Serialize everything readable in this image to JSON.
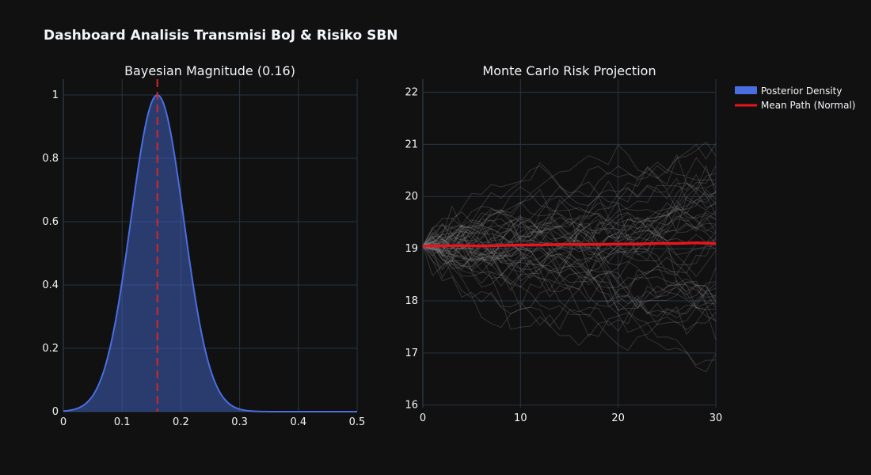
{
  "title": "Dashboard Analisis Transmisi BoJ & Risiko SBN",
  "colors": {
    "background": "#111111",
    "grid": "#283442",
    "density_line": "#4a6ee0",
    "density_fill": "rgba(74,110,224,0.45)",
    "mean_marker": "#d62728",
    "mc_paths": "rgba(160,160,160,0.25)",
    "mean_path": "#e8141e"
  },
  "legend": {
    "items": [
      {
        "label": "Posterior Density",
        "type": "area",
        "color": "#4a6ee0"
      },
      {
        "label": "Mean Path (Normal)",
        "type": "line",
        "color": "#e8141e"
      }
    ],
    "position": "top-right"
  },
  "chart_data": [
    {
      "type": "area",
      "title": "Bayesian Magnitude (0.16)",
      "xlabel": "",
      "ylabel": "",
      "xlim": [
        0,
        0.5
      ],
      "ylim": [
        0,
        1.05
      ],
      "xticks": [
        "0",
        "0.1",
        "0.2",
        "0.3",
        "0.4",
        "0.5"
      ],
      "yticks": [
        "0",
        "0.2",
        "0.4",
        "0.6",
        "0.8",
        "1"
      ],
      "grid": true,
      "distribution": {
        "shape": "normal",
        "mean": 0.16,
        "sd": 0.045,
        "normalized_peak": 1
      },
      "mean_line": {
        "x": 0.16,
        "style": "dashed"
      },
      "series": [
        {
          "name": "Posterior Density",
          "x": [
            0,
            0.02,
            0.04,
            0.06,
            0.08,
            0.1,
            0.12,
            0.14,
            0.16,
            0.18,
            0.2,
            0.22,
            0.24,
            0.26,
            0.28,
            0.3,
            0.32,
            0.35,
            0.4,
            0.45,
            0.5
          ],
          "y": [
            0.002,
            0.008,
            0.029,
            0.085,
            0.206,
            0.411,
            0.674,
            0.906,
            1.0,
            0.906,
            0.674,
            0.411,
            0.206,
            0.085,
            0.029,
            0.008,
            0.002,
            0.0001,
            0,
            0,
            0
          ]
        }
      ]
    },
    {
      "type": "line",
      "title": "Monte Carlo Risk Projection",
      "xlabel": "",
      "ylabel": "",
      "xlim": [
        0,
        30
      ],
      "ylim": [
        15.95,
        22.25
      ],
      "xticks": [
        "0",
        "10",
        "20",
        "30"
      ],
      "yticks": [
        "16",
        "17",
        "18",
        "19",
        "20",
        "21",
        "22"
      ],
      "grid": true,
      "simulation": {
        "paths": 50,
        "start": 19.05,
        "steps": 30
      },
      "series": [
        {
          "name": "Mean Path (Normal)",
          "x": [
            0,
            2,
            4,
            6,
            8,
            10,
            12,
            14,
            16,
            18,
            20,
            22,
            24,
            26,
            28,
            30
          ],
          "y": [
            19.05,
            19.05,
            19.06,
            19.05,
            19.06,
            19.07,
            19.07,
            19.08,
            19.08,
            19.08,
            19.09,
            19.09,
            19.1,
            19.1,
            19.11,
            19.1
          ]
        }
      ]
    }
  ]
}
